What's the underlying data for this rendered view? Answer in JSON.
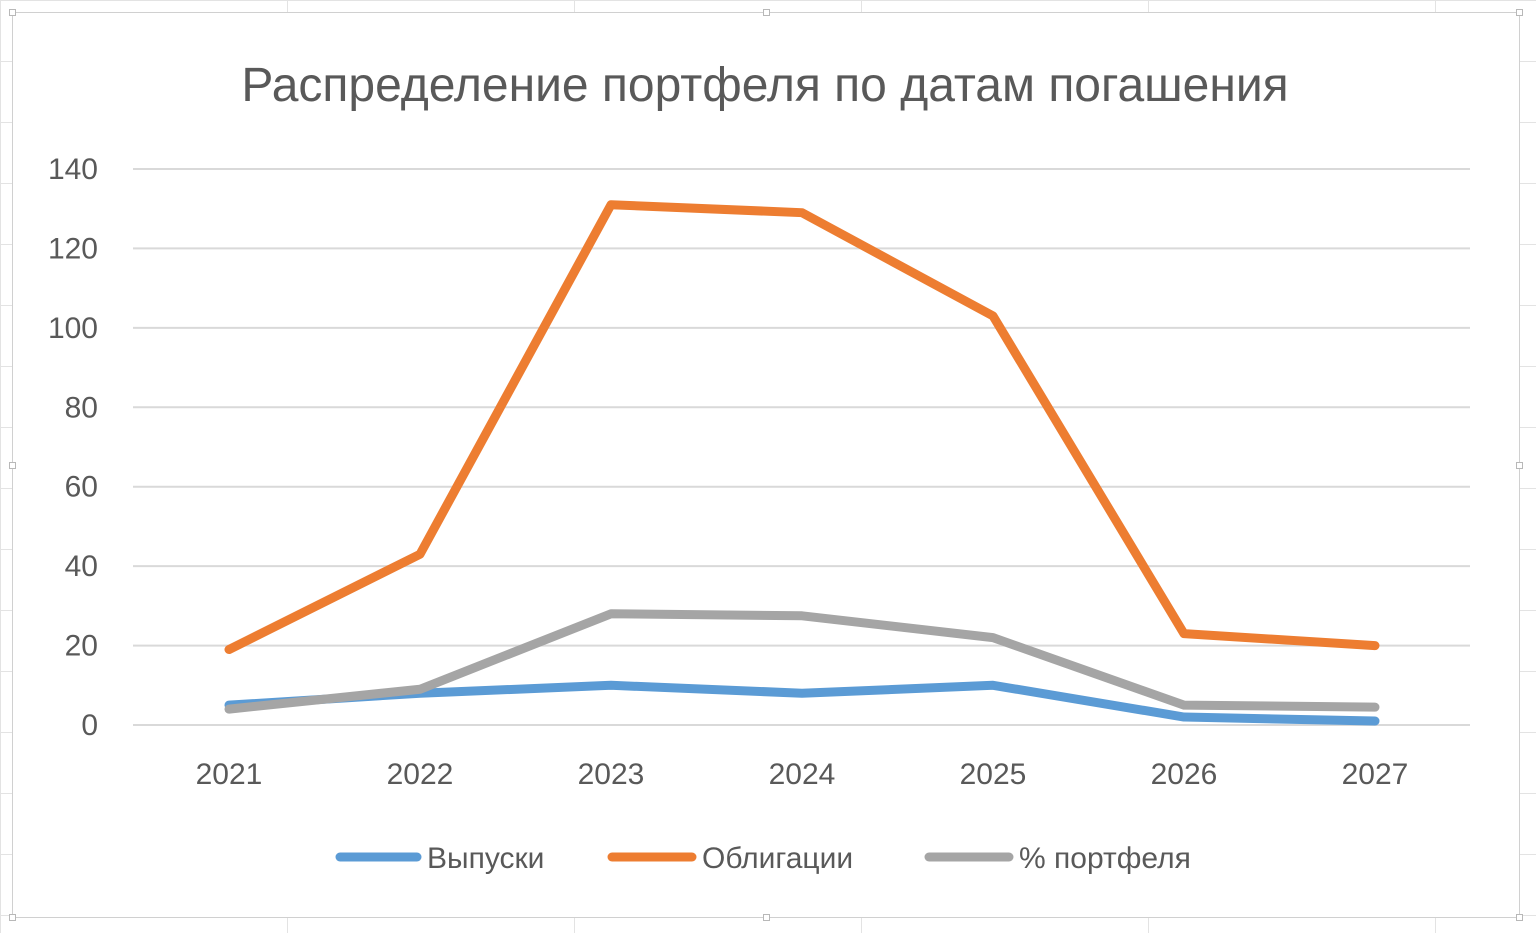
{
  "chart_data": {
    "type": "line",
    "title": "Распределение портфеля по датам погашения",
    "categories": [
      "2021",
      "2022",
      "2023",
      "2024",
      "2025",
      "2026",
      "2027"
    ],
    "ylim": [
      0,
      140
    ],
    "yticks": [
      0,
      20,
      40,
      60,
      80,
      100,
      120,
      140
    ],
    "grid": true,
    "legend_position": "bottom",
    "series": [
      {
        "name": "Выпуски",
        "color": "#5B9BD5",
        "values": [
          5,
          8,
          10,
          8,
          10,
          2,
          1
        ]
      },
      {
        "name": "Облигации",
        "color": "#ED7D31",
        "values": [
          19,
          43,
          131,
          129,
          103,
          23,
          20
        ]
      },
      {
        "name": "% портфеля",
        "color": "#A5A5A5",
        "values": [
          4,
          9,
          28,
          27.5,
          22,
          5,
          4.5
        ]
      }
    ]
  }
}
